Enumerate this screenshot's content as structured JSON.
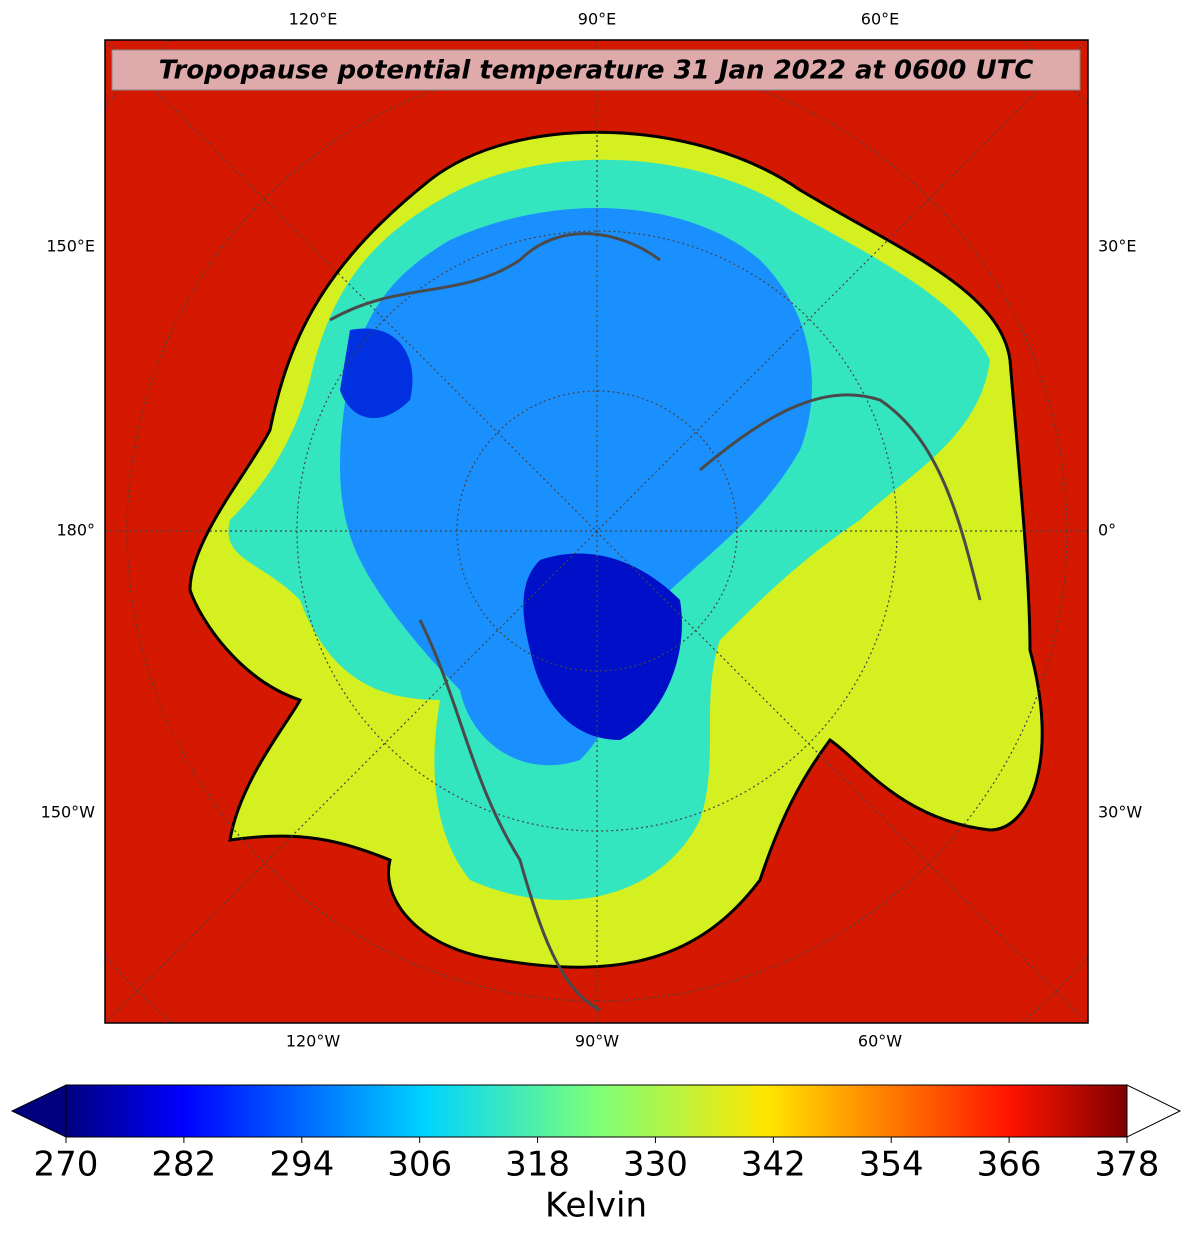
{
  "map": {
    "title": "Tropopause potential temperature 31 Jan 2022 at 0600 UTC",
    "top_labels": [
      "120°E",
      "90°E",
      "60°E"
    ],
    "bottom_labels": [
      "120°W",
      "90°W",
      "60°W"
    ],
    "left_labels": [
      "150°E",
      "180°",
      "150°W"
    ],
    "right_labels": [
      "30°E",
      "0°",
      "30°W"
    ]
  },
  "colorbar": {
    "label": "Kelvin",
    "lim": [
      270,
      378
    ],
    "ticks": [
      270,
      282,
      294,
      306,
      318,
      330,
      342,
      354,
      366,
      378
    ]
  }
}
